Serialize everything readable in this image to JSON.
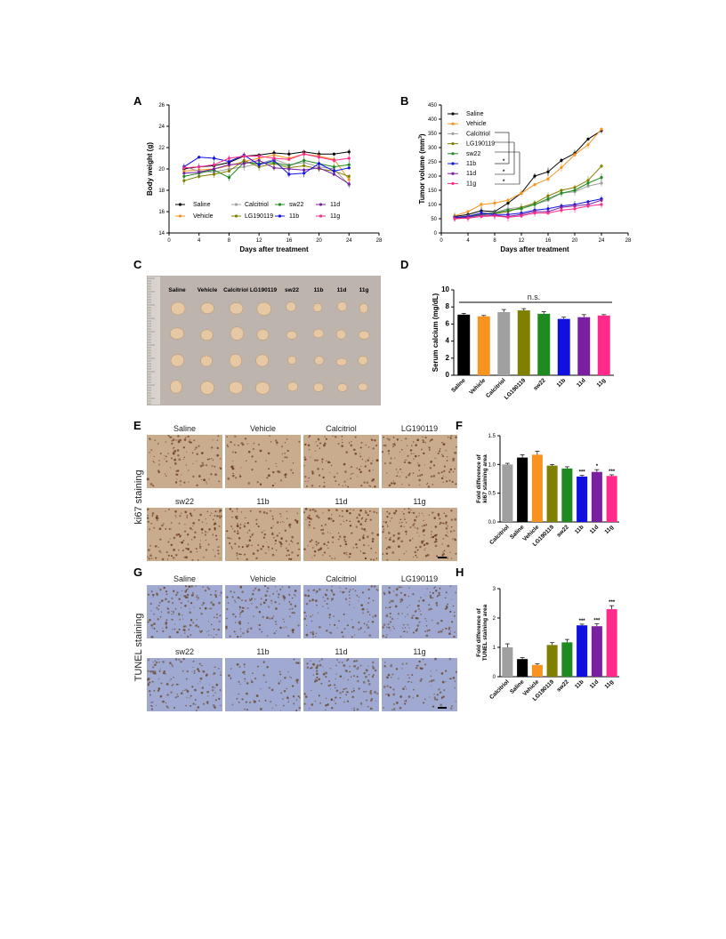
{
  "panel_letters": {
    "a": "A",
    "b": "B",
    "c": "C",
    "d": "D",
    "e": "E",
    "f": "F",
    "g": "G",
    "h": "H"
  },
  "colors": {
    "Saline": "#000000",
    "Vehicle": "#f7931e",
    "Calcitriol": "#a0a0a0",
    "LG190119": "#808000",
    "sw22": "#1f8a1f",
    "11b": "#1010e0",
    "11d": "#7a1fa2",
    "11g": "#ff2a8a",
    "ki67_bg": "#c9ab8e",
    "ki67_dot": "#6a3b1f",
    "tunel_bg": "#9fa9d2",
    "tunel_dot": "#6a4a30"
  },
  "chart_data": [
    {
      "id": "A",
      "type": "line",
      "xlabel": "Days after treatment",
      "ylabel": "Body weight (g)",
      "xlim": [
        0,
        28
      ],
      "ylim": [
        14,
        26
      ],
      "xticks": [
        "0",
        "4",
        "8",
        "12",
        "16",
        "20",
        "24",
        "28"
      ],
      "yticks": [
        "14",
        "16",
        "18",
        "20",
        "22",
        "24",
        "26"
      ],
      "x": [
        2,
        4,
        6,
        8,
        10,
        12,
        14,
        16,
        18,
        20,
        22,
        24
      ],
      "series": [
        {
          "name": "Saline",
          "values": [
            20.0,
            20.2,
            20.3,
            20.6,
            21.2,
            21.3,
            21.5,
            21.4,
            21.6,
            21.4,
            21.4,
            21.6
          ]
        },
        {
          "name": "Vehicle",
          "values": [
            19.8,
            19.9,
            20.0,
            20.3,
            20.7,
            21.0,
            21.3,
            21.0,
            21.4,
            21.2,
            20.9,
            19.0
          ]
        },
        {
          "name": "Calcitriol",
          "values": [
            20.2,
            19.8,
            19.7,
            20.0,
            20.2,
            20.5,
            20.9,
            20.4,
            20.6,
            20.2,
            20.0,
            18.5
          ]
        },
        {
          "name": "LG190119",
          "values": [
            18.9,
            19.3,
            19.5,
            19.8,
            20.8,
            20.2,
            20.5,
            20.1,
            20.3,
            20.0,
            19.8,
            19.3
          ]
        },
        {
          "name": "sw22",
          "values": [
            19.3,
            19.6,
            19.9,
            19.2,
            20.6,
            20.5,
            20.6,
            20.3,
            20.8,
            20.5,
            20.2,
            20.4
          ]
        },
        {
          "name": "11d",
          "values": [
            19.6,
            19.7,
            20.0,
            20.4,
            20.5,
            20.8,
            20.1,
            20.0,
            19.9,
            20.1,
            19.5,
            18.6
          ]
        },
        {
          "name": "11b",
          "values": [
            20.2,
            21.1,
            21.0,
            20.7,
            21.3,
            20.4,
            20.8,
            19.5,
            19.6,
            20.5,
            19.8,
            20.1
          ]
        },
        {
          "name": "11g",
          "values": [
            20.1,
            20.2,
            20.4,
            21.0,
            21.2,
            21.2,
            21.0,
            20.9,
            21.4,
            21.1,
            20.8,
            21.0
          ]
        }
      ],
      "legend": [
        [
          "Saline",
          "Calcitriol",
          "sw22",
          "11d"
        ],
        [
          "Vehicle",
          "LG190119",
          "11b",
          "11g"
        ]
      ]
    },
    {
      "id": "B",
      "type": "line",
      "xlabel": "Days after treatment",
      "ylabel": "Tumor volume (mm",
      "ylabel_sup": "3",
      "ylabel_end": ")",
      "xlim": [
        0,
        28
      ],
      "ylim": [
        0,
        450
      ],
      "xticks": [
        "0",
        "4",
        "8",
        "12",
        "16",
        "20",
        "24",
        "28"
      ],
      "yticks": [
        "0",
        "50",
        "100",
        "150",
        "200",
        "250",
        "300",
        "350",
        "400",
        "450"
      ],
      "x": [
        2,
        4,
        6,
        8,
        10,
        12,
        14,
        16,
        18,
        20,
        22,
        24
      ],
      "series": [
        {
          "name": "Saline",
          "values": [
            58,
            65,
            78,
            75,
            105,
            140,
            200,
            215,
            255,
            280,
            330,
            360
          ]
        },
        {
          "name": "Vehicle",
          "values": [
            60,
            75,
            100,
            105,
            115,
            140,
            170,
            190,
            230,
            275,
            310,
            365
          ]
        },
        {
          "name": "Calcitriol",
          "values": [
            55,
            60,
            70,
            72,
            85,
            90,
            100,
            115,
            140,
            145,
            165,
            175
          ]
        },
        {
          "name": "LG190119",
          "values": [
            55,
            58,
            65,
            68,
            75,
            90,
            105,
            130,
            150,
            160,
            185,
            235
          ]
        },
        {
          "name": "sw22",
          "values": [
            55,
            58,
            65,
            70,
            80,
            85,
            100,
            120,
            140,
            150,
            175,
            195
          ]
        },
        {
          "name": "11b",
          "values": [
            55,
            58,
            70,
            65,
            65,
            70,
            80,
            85,
            95,
            100,
            110,
            120
          ]
        },
        {
          "name": "11d",
          "values": [
            52,
            55,
            62,
            62,
            58,
            65,
            75,
            75,
            90,
            95,
            100,
            115
          ]
        },
        {
          "name": "11g",
          "values": [
            50,
            52,
            58,
            60,
            55,
            60,
            70,
            70,
            80,
            85,
            95,
            100
          ]
        }
      ],
      "legend": [
        "Saline",
        "Vehicle",
        "Calcitriol",
        "LG190119",
        "sw22",
        "11b",
        "11d",
        "11g"
      ],
      "significance": [
        "*",
        "*",
        "*"
      ]
    },
    {
      "id": "D",
      "type": "bar",
      "ylabel": "Serum calcium (mg/dL)",
      "ylim": [
        0,
        10
      ],
      "yticks": [
        "0",
        "2",
        "4",
        "6",
        "8",
        "10"
      ],
      "categories": [
        "Saline",
        "Vehicle",
        "Calcitriol",
        "LG190119",
        "sw22",
        "11b",
        "11d",
        "11g"
      ],
      "values": [
        7.1,
        6.9,
        7.4,
        7.6,
        7.2,
        6.6,
        6.8,
        7.0
      ],
      "errors": [
        0.15,
        0.1,
        0.3,
        0.2,
        0.25,
        0.2,
        0.3,
        0.1
      ],
      "annotation": "n.s."
    },
    {
      "id": "F",
      "type": "bar",
      "ylabel_lines": [
        "Fold difference of",
        "ki67 staining area"
      ],
      "ylim": [
        0,
        1.5
      ],
      "yticks": [
        "0.0",
        "0.5",
        "1.0",
        "1.5"
      ],
      "categories": [
        "Calcitriol",
        "Saline",
        "Vehicle",
        "LG190119",
        "sw22",
        "11b",
        "11d",
        "11g"
      ],
      "values": [
        1.0,
        1.12,
        1.17,
        0.98,
        0.93,
        0.79,
        0.87,
        0.8
      ],
      "errors": [
        0.02,
        0.05,
        0.06,
        0.02,
        0.03,
        0.02,
        0.04,
        0.02
      ],
      "stars": [
        "",
        "",
        "",
        "",
        "",
        "***",
        "*",
        "***"
      ]
    },
    {
      "id": "H",
      "type": "bar",
      "ylabel_lines": [
        "Fold difference of",
        "TUNEL staining area"
      ],
      "ylim": [
        0,
        3
      ],
      "yticks": [
        "0",
        "1",
        "2",
        "3"
      ],
      "categories": [
        "Calcitriol",
        "Saline",
        "Vehicle",
        "LG190119",
        "sw22",
        "11b",
        "11d",
        "11g"
      ],
      "values": [
        1.0,
        0.6,
        0.4,
        1.08,
        1.17,
        1.75,
        1.72,
        2.3
      ],
      "errors": [
        0.12,
        0.05,
        0.04,
        0.08,
        0.1,
        0.04,
        0.08,
        0.12
      ],
      "stars": [
        "",
        "",
        "",
        "",
        "",
        "***",
        "***",
        "***"
      ]
    }
  ],
  "photo_c": {
    "labels": [
      "Saline",
      "Vehicle",
      "Calcitriol",
      "LG190119",
      "sw22",
      "11b",
      "11d",
      "11g"
    ]
  },
  "staining": {
    "ki67_label": "ki67 staining",
    "tunel_label": "TUNEL staining",
    "top_labels": [
      "Saline",
      "Vehicle",
      "Calcitriol",
      "LG190119"
    ],
    "bottom_labels": [
      "sw22",
      "11b",
      "11d",
      "11g"
    ]
  }
}
